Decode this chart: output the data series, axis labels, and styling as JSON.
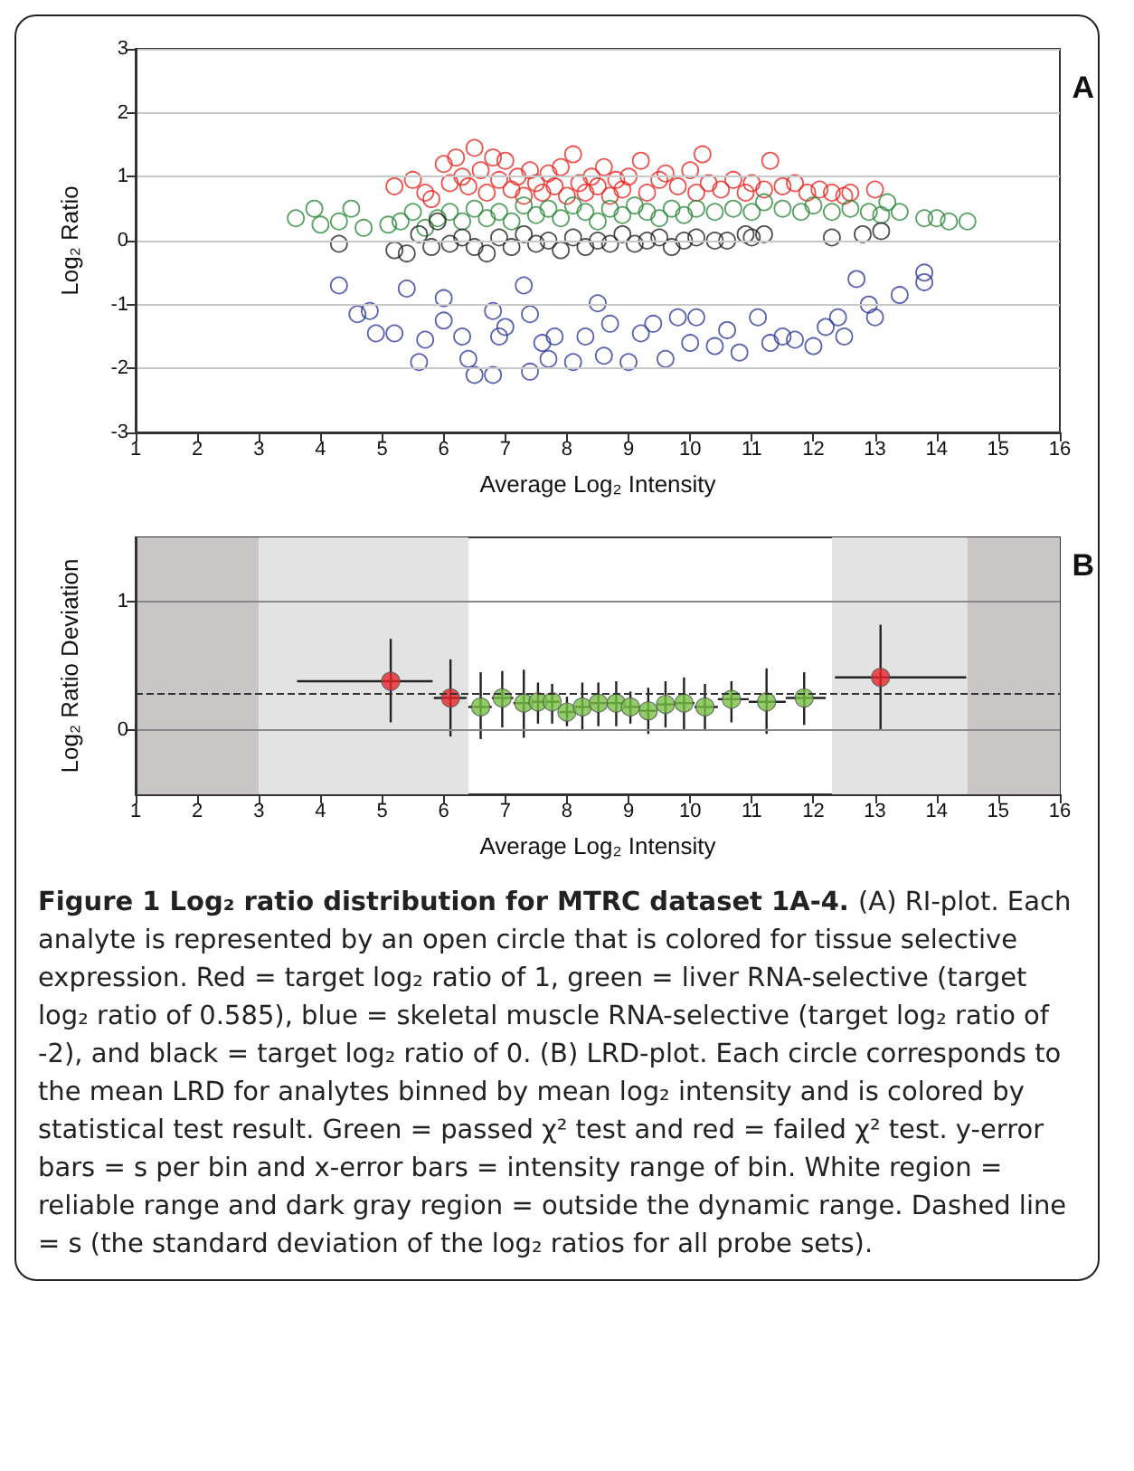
{
  "chart_data": [
    {
      "type": "scatter",
      "title": "A",
      "xlabel": "Average Log₂ Intensity",
      "ylabel": "Log₂ Ratio",
      "xlim": [
        1,
        16
      ],
      "ylim": [
        -3,
        3
      ],
      "xticks": [
        1,
        2,
        3,
        4,
        5,
        6,
        7,
        8,
        9,
        10,
        11,
        12,
        13,
        14,
        15,
        16
      ],
      "yticks": [
        -3,
        -2,
        -1,
        0,
        1,
        2,
        3
      ],
      "grid": "y",
      "marker": "circle",
      "series": [
        {
          "color": "#e8251f",
          "x": [
            5.2,
            5.5,
            5.7,
            5.8,
            6.0,
            6.1,
            6.2,
            6.3,
            6.4,
            6.5,
            6.6,
            6.7,
            6.8,
            6.9,
            7.0,
            7.1,
            7.2,
            7.3,
            7.4,
            7.5,
            7.6,
            7.7,
            7.8,
            7.9,
            8.0,
            8.1,
            8.2,
            8.3,
            8.4,
            8.5,
            8.6,
            8.7,
            8.8,
            8.9,
            9.0,
            9.2,
            9.3,
            9.5,
            9.6,
            9.8,
            10.0,
            10.1,
            10.2,
            10.3,
            10.5,
            10.7,
            10.9,
            11.0,
            11.2,
            11.3,
            11.5,
            11.7,
            11.9,
            12.1,
            12.3,
            12.5,
            12.6,
            13.0
          ],
          "values": [
            0.85,
            0.95,
            0.75,
            0.65,
            1.2,
            0.9,
            1.3,
            1.0,
            0.85,
            1.45,
            1.1,
            0.75,
            1.3,
            0.95,
            1.25,
            0.8,
            1.0,
            0.7,
            1.1,
            0.9,
            0.75,
            1.05,
            0.85,
            1.15,
            0.7,
            1.35,
            0.9,
            0.75,
            1.0,
            0.85,
            1.15,
            0.7,
            0.95,
            0.8,
            1.0,
            1.25,
            0.75,
            0.95,
            1.05,
            0.85,
            1.1,
            0.75,
            1.35,
            0.9,
            0.8,
            0.95,
            0.75,
            0.9,
            0.8,
            1.25,
            0.85,
            0.9,
            0.75,
            0.8,
            0.75,
            0.7,
            0.75,
            0.8
          ]
        },
        {
          "color": "#2a8a3a",
          "x": [
            3.6,
            3.9,
            4.0,
            4.3,
            4.5,
            4.7,
            5.1,
            5.3,
            5.5,
            5.7,
            5.9,
            6.1,
            6.3,
            6.5,
            6.7,
            6.9,
            7.1,
            7.3,
            7.5,
            7.7,
            7.9,
            8.1,
            8.3,
            8.5,
            8.7,
            8.9,
            9.1,
            9.3,
            9.5,
            9.7,
            9.9,
            10.1,
            10.4,
            10.7,
            11.0,
            11.2,
            11.5,
            11.8,
            12.0,
            12.3,
            12.6,
            12.9,
            13.1,
            13.2,
            13.4,
            13.8,
            14.0,
            14.2,
            14.5
          ],
          "values": [
            0.35,
            0.5,
            0.25,
            0.3,
            0.5,
            0.2,
            0.25,
            0.3,
            0.45,
            0.2,
            0.35,
            0.45,
            0.3,
            0.5,
            0.35,
            0.45,
            0.3,
            0.55,
            0.4,
            0.5,
            0.35,
            0.55,
            0.45,
            0.3,
            0.5,
            0.4,
            0.55,
            0.45,
            0.35,
            0.5,
            0.4,
            0.5,
            0.45,
            0.5,
            0.45,
            0.6,
            0.5,
            0.45,
            0.55,
            0.45,
            0.5,
            0.45,
            0.4,
            0.6,
            0.45,
            0.35,
            0.35,
            0.3,
            0.3
          ]
        },
        {
          "color": "#222222",
          "x": [
            4.3,
            5.2,
            5.4,
            5.6,
            5.8,
            5.9,
            6.1,
            6.3,
            6.5,
            6.7,
            6.9,
            7.1,
            7.3,
            7.5,
            7.7,
            7.9,
            8.1,
            8.3,
            8.5,
            8.7,
            8.9,
            9.1,
            9.3,
            9.5,
            9.7,
            9.9,
            10.1,
            10.4,
            10.6,
            10.9,
            11.0,
            11.2,
            12.3,
            12.8,
            13.1
          ],
          "values": [
            -0.05,
            -0.15,
            -0.2,
            0.1,
            -0.1,
            0.3,
            -0.05,
            0.05,
            -0.1,
            -0.2,
            0.05,
            -0.1,
            0.1,
            -0.05,
            0.0,
            -0.15,
            0.05,
            -0.1,
            0.0,
            -0.05,
            0.1,
            -0.05,
            0.0,
            0.05,
            -0.1,
            0.0,
            0.05,
            0.0,
            0.0,
            0.1,
            0.05,
            0.1,
            0.05,
            0.1,
            0.15
          ]
        },
        {
          "color": "#2e3a9e",
          "x": [
            4.3,
            4.6,
            4.8,
            4.9,
            5.2,
            5.4,
            5.6,
            5.7,
            6.0,
            6.0,
            6.3,
            6.4,
            6.5,
            6.8,
            6.8,
            6.9,
            7.0,
            7.3,
            7.4,
            7.4,
            7.6,
            7.7,
            7.8,
            8.1,
            8.3,
            8.5,
            8.6,
            8.7,
            9.0,
            9.2,
            9.4,
            9.6,
            9.8,
            10.0,
            10.1,
            10.4,
            10.6,
            10.8,
            11.1,
            11.3,
            11.5,
            11.7,
            12.0,
            12.2,
            12.4,
            12.5,
            12.7,
            12.9,
            13.0,
            13.4,
            13.8,
            13.8
          ],
          "values": [
            -0.7,
            -1.15,
            -1.1,
            -1.45,
            -1.45,
            -0.75,
            -1.9,
            -1.55,
            -0.9,
            -1.25,
            -1.5,
            -1.85,
            -2.1,
            -1.1,
            -2.1,
            -1.5,
            -1.35,
            -0.7,
            -1.15,
            -2.05,
            -1.6,
            -1.85,
            -1.5,
            -1.9,
            -1.5,
            -0.98,
            -1.8,
            -1.3,
            -1.9,
            -1.45,
            -1.3,
            -1.85,
            -1.2,
            -1.6,
            -1.2,
            -1.65,
            -1.4,
            -1.75,
            -1.2,
            -1.6,
            -1.5,
            -1.55,
            -1.65,
            -1.35,
            -1.2,
            -1.5,
            -0.6,
            -1.0,
            -1.2,
            -0.85,
            -0.5,
            -0.65
          ]
        }
      ]
    },
    {
      "type": "scatter",
      "title": "B",
      "xlabel": "Average Log₂ Intensity",
      "ylabel": "Log₂ Ratio Deviation",
      "xlim": [
        1,
        16
      ],
      "ylim": [
        -0.5,
        1.5
      ],
      "xticks": [
        1,
        2,
        3,
        4,
        5,
        6,
        7,
        8,
        9,
        10,
        11,
        12,
        13,
        14,
        15,
        16
      ],
      "yticks": [
        0,
        1
      ],
      "grid": "y",
      "marker": "circle",
      "bands": [
        {
          "axis": "x",
          "from": 1,
          "to": 3,
          "color": "#cac6c6"
        },
        {
          "axis": "x",
          "from": 3,
          "to": 6.4,
          "color": "#e3e3e3"
        },
        {
          "axis": "x",
          "from": 12.3,
          "to": 14.5,
          "color": "#e3e3e3"
        },
        {
          "axis": "x",
          "from": 14.5,
          "to": 16,
          "color": "#cac6c6"
        }
      ],
      "ref_lines": [
        {
          "axis": "y",
          "value": 0.29,
          "label": null,
          "line_style": "dashed",
          "color": "#333333"
        }
      ],
      "series": [
        {
          "color": "#e8262a",
          "x": [
            5.14,
            6.11,
            13.09
          ],
          "values": [
            0.38,
            0.25,
            0.41
          ],
          "errors": [
            [
              0.06,
              0.71
            ],
            [
              -0.05,
              0.55
            ],
            [
              0.0,
              0.82
            ]
          ],
          "xerrors": [
            [
              3.62,
              5.82
            ],
            [
              5.84,
              6.37
            ],
            [
              12.35,
              14.48
            ]
          ]
        },
        {
          "color": "#77c043",
          "x": [
            6.6,
            6.95,
            7.3,
            7.53,
            7.76,
            8.0,
            8.25,
            8.51,
            8.8,
            9.03,
            9.32,
            9.6,
            9.9,
            10.24,
            10.67,
            11.24,
            11.85
          ],
          "values": [
            0.18,
            0.25,
            0.21,
            0.22,
            0.22,
            0.14,
            0.18,
            0.21,
            0.21,
            0.18,
            0.15,
            0.2,
            0.21,
            0.18,
            0.24,
            0.22,
            0.25
          ],
          "errors": [
            [
              -0.07,
              0.45
            ],
            [
              0.02,
              0.46
            ],
            [
              -0.06,
              0.47
            ],
            [
              0.05,
              0.37
            ],
            [
              0.05,
              0.36
            ],
            [
              0.03,
              0.26
            ],
            [
              0.0,
              0.37
            ],
            [
              0.03,
              0.37
            ],
            [
              0.03,
              0.38
            ],
            [
              0.05,
              0.3
            ],
            [
              -0.03,
              0.33
            ],
            [
              0.02,
              0.38
            ],
            [
              0.0,
              0.41
            ],
            [
              0.0,
              0.36
            ],
            [
              0.06,
              0.38
            ],
            [
              -0.03,
              0.48
            ],
            [
              0.04,
              0.45
            ]
          ],
          "xerrors": [
            [
              6.4,
              6.78
            ],
            [
              6.78,
              7.13
            ],
            [
              7.13,
              7.42
            ],
            [
              7.42,
              7.65
            ],
            [
              7.65,
              7.88
            ],
            [
              7.88,
              8.12
            ],
            [
              8.12,
              8.38
            ],
            [
              8.38,
              8.65
            ],
            [
              8.65,
              8.92
            ],
            [
              8.92,
              9.18
            ],
            [
              9.18,
              9.46
            ],
            [
              9.46,
              9.75
            ],
            [
              9.75,
              10.07
            ],
            [
              10.07,
              10.45
            ],
            [
              10.45,
              10.95
            ],
            [
              10.95,
              11.55
            ],
            [
              11.55,
              12.2
            ]
          ]
        }
      ],
      "annotations": [
        "Figure 1 Log₂ ratio distribution for MTRC dataset 1A-4.",
        "(A) RI-plot. Each analyte is represented by an open circle that is colored for tissue selective expression. Red = target log₂ ratio of 1, green = liver RNA-selective (target log₂ ratio of 0.585), blue = skeletal muscle RNA-selective (target log₂ ratio of -2), and black = target log₂ ratio of 0. (B) LRD-plot. Each circle corresponds to the mean LRD for analytes binned by mean log₂ intensity and is colored by statistical test result. Green = passed χ² test and red = failed χ² test. y-error bars = s per bin and x-error bars = intensity range of bin. White region = reliable range and dark gray region = outside the dynamic range. Dashed line = s (the standard deviation of the log₂ ratios for all probe sets)."
      ]
    }
  ]
}
